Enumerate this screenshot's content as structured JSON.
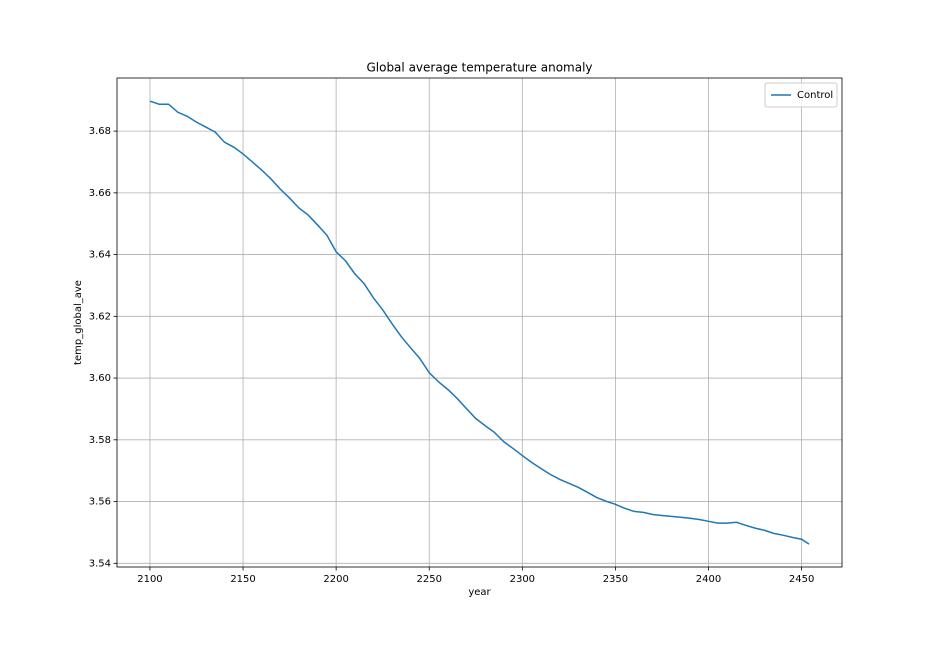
{
  "chart_data": {
    "type": "line",
    "title": "Global average temperature anomaly",
    "xlabel": "year",
    "ylabel": "temp_global_ave",
    "x": [
      2100,
      2105,
      2110,
      2115,
      2120,
      2125,
      2130,
      2135,
      2140,
      2145,
      2150,
      2155,
      2160,
      2165,
      2170,
      2175,
      2180,
      2185,
      2190,
      2195,
      2200,
      2205,
      2210,
      2215,
      2220,
      2225,
      2230,
      2235,
      2240,
      2245,
      2250,
      2255,
      2260,
      2265,
      2270,
      2275,
      2280,
      2285,
      2290,
      2295,
      2300,
      2305,
      2310,
      2315,
      2320,
      2325,
      2330,
      2335,
      2340,
      2345,
      2350,
      2355,
      2360,
      2365,
      2370,
      2375,
      2380,
      2385,
      2390,
      2395,
      2400,
      2405,
      2410,
      2415,
      2420,
      2425,
      2430,
      2435,
      2440,
      2445,
      2450,
      2454
    ],
    "series": [
      {
        "name": "Control",
        "color": "#1f77b4",
        "values": [
          3.6897,
          3.6887,
          3.6887,
          3.6861,
          3.6848,
          3.6829,
          3.6813,
          3.6797,
          3.6764,
          3.6748,
          3.6726,
          3.67,
          3.6674,
          3.6645,
          3.6612,
          3.6583,
          3.6551,
          3.6528,
          3.6496,
          3.6463,
          3.6409,
          3.638,
          3.6338,
          3.6306,
          3.626,
          3.6221,
          3.6176,
          3.6134,
          3.6098,
          3.6063,
          3.6017,
          3.5988,
          3.5963,
          3.5934,
          3.5901,
          3.5869,
          3.5846,
          3.5824,
          3.5794,
          3.5772,
          3.5749,
          3.5727,
          3.5707,
          3.5688,
          3.5672,
          3.5659,
          3.5646,
          3.563,
          3.5613,
          3.5601,
          3.5591,
          3.5578,
          3.5568,
          3.5565,
          3.5558,
          3.5555,
          3.5552,
          3.5549,
          3.5546,
          3.5542,
          3.5536,
          3.553,
          3.553,
          3.5533,
          3.5523,
          3.5514,
          3.5507,
          3.5497,
          3.5491,
          3.5484,
          3.5478,
          3.5462
        ]
      }
    ],
    "xlim": [
      2082.3,
      2471.7
    ],
    "ylim": [
      3.5388,
      3.6972
    ],
    "xticks": [
      2100,
      2150,
      2200,
      2250,
      2300,
      2350,
      2400,
      2450
    ],
    "yticks": [
      3.54,
      3.56,
      3.58,
      {
        "value": 3.6,
        "label": "3.60"
      },
      3.62,
      3.64,
      3.66,
      3.68
    ],
    "grid": true,
    "legend": "upper right"
  }
}
